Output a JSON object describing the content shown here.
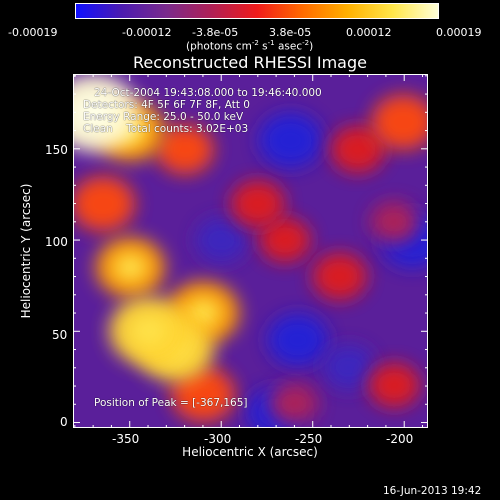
{
  "colorbar": {
    "tick_labels": [
      "-0.00019",
      "-0.00012",
      "-3.8e-05",
      "3.8e-05",
      "0.00012",
      "0.00019"
    ],
    "units_label": "(photons cm",
    "units_sup1": "-2",
    "units_mid1": " s",
    "units_sup2": "-1",
    "units_mid2": " asec",
    "units_sup3": "-2",
    "units_end": ")",
    "gradient_colors": [
      "#1010ff",
      "#4b1bb0",
      "#7a2a8c",
      "#b02055",
      "#f01b1b",
      "#ff6a00",
      "#ffb000",
      "#ffe64a",
      "#ffffd8"
    ]
  },
  "title": "Reconstructed RHESSI Image",
  "annotations": {
    "time_range": "24-Oct-2004 19:43:08.000 to 19:46:40.000",
    "detectors": "Detectors: 4F 5F 6F 7F 8F, Att 0",
    "energy_range": "Energy Range: 25.0 - 50.0 keV",
    "method_counts": "Clean    Total counts: 3.02E+03",
    "peak_position": "Position of Peak = [-367,165]"
  },
  "axes": {
    "xlabel": "Heliocentric X (arcsec)",
    "ylabel": "Heliocentric Y (arcsec)",
    "x_ticks": [
      "-350",
      "-300",
      "-250",
      "-200"
    ],
    "y_ticks": [
      "0",
      "50",
      "100",
      "150"
    ],
    "xlim": [
      -381,
      -187
    ],
    "ylim": [
      -3,
      191
    ]
  },
  "footer": {
    "timestamp": "16-Jun-2013 19:42"
  },
  "chart_data": {
    "type": "heatmap",
    "title": "Reconstructed RHESSI Image",
    "xlabel": "Heliocentric X (arcsec)",
    "ylabel": "Heliocentric Y (arcsec)",
    "xlim": [
      -381,
      -187
    ],
    "ylim": [
      -3,
      191
    ],
    "x_ticks": [
      -350,
      -300,
      -250,
      -200
    ],
    "y_ticks": [
      0,
      50,
      100,
      150
    ],
    "colorbar_range": [
      -0.00019,
      0.00019
    ],
    "peak_position": [
      -367,
      165
    ],
    "sources": [
      {
        "x": -370,
        "y": 170,
        "value": 0.00018
      },
      {
        "x": -350,
        "y": 160,
        "value": 0.00012
      },
      {
        "x": -340,
        "y": 50,
        "value": 0.00015
      },
      {
        "x": -325,
        "y": 40,
        "value": 0.00014
      },
      {
        "x": -310,
        "y": 60,
        "value": 0.00013
      },
      {
        "x": -350,
        "y": 85,
        "value": 0.00012
      },
      {
        "x": -365,
        "y": 120,
        "value": 0.0001
      },
      {
        "x": -310,
        "y": 15,
        "value": 0.0001
      },
      {
        "x": -320,
        "y": 150,
        "value": 8e-05
      },
      {
        "x": -280,
        "y": 120,
        "value": 7e-05
      },
      {
        "x": -265,
        "y": 100,
        "value": 6e-05
      },
      {
        "x": -235,
        "y": 80,
        "value": 7e-05
      },
      {
        "x": -200,
        "y": 165,
        "value": 0.0001
      },
      {
        "x": -225,
        "y": 150,
        "value": 7e-05
      },
      {
        "x": -205,
        "y": 110,
        "value": 5e-05
      },
      {
        "x": -205,
        "y": 20,
        "value": 6e-05
      },
      {
        "x": -260,
        "y": 10,
        "value": 5e-05
      },
      {
        "x": -262,
        "y": 155,
        "value": -0.0001
      },
      {
        "x": -258,
        "y": 45,
        "value": -9e-05
      },
      {
        "x": -195,
        "y": 100,
        "value": -0.0001
      },
      {
        "x": -270,
        "y": 5,
        "value": -8e-05
      },
      {
        "x": -300,
        "y": 100,
        "value": -6e-05
      },
      {
        "x": -230,
        "y": 30,
        "value": -6e-05
      }
    ]
  }
}
